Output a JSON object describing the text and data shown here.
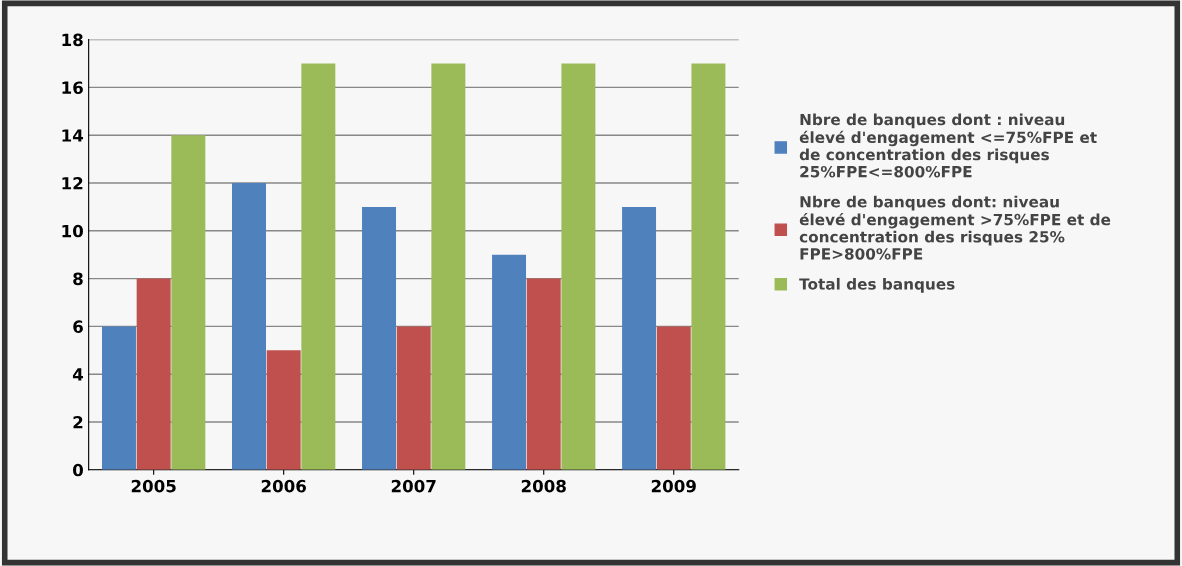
{
  "chart_data": {
    "type": "bar",
    "categories": [
      "2005",
      "2006",
      "2007",
      "2008",
      "2009"
    ],
    "series": [
      {
        "name": "Nbre de banques dont : niveau\nélevé d'engagement <=75%FPE et\nde concentration des risques\n25%FPE<=800%FPE",
        "color": "#4f81bd",
        "values": [
          6,
          12,
          11,
          9,
          11
        ]
      },
      {
        "name": "Nbre de banques dont: niveau\nélevé d'engagement >75%FPE et de\nconcentration des risques 25%\nFPE>800%FPE",
        "color": "#c0504d",
        "values": [
          8,
          5,
          6,
          8,
          6
        ]
      },
      {
        "name": "Total des banques",
        "color": "#9bbb59",
        "values": [
          14,
          17,
          17,
          17,
          17
        ]
      }
    ],
    "ylim": [
      0,
      18
    ],
    "yticks": [
      0,
      2,
      4,
      6,
      8,
      10,
      12,
      14,
      16,
      18
    ],
    "grid": "y",
    "legend": "right"
  }
}
